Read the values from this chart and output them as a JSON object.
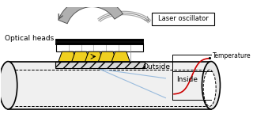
{
  "bg_color": "#ffffff",
  "pipe_edge_color": "#000000",
  "pipe_face_color": "#f0f0f0",
  "pipe_inner_color": "#ffffff",
  "head_box_color": "#ffffff",
  "head_box_edge": "#000000",
  "cone_fill": "#f0d020",
  "cone_edge": "#000000",
  "hatch_fill": "#d8d8d8",
  "temp_curve_color": "#cc0000",
  "blue_line_color": "#99bbdd",
  "arrow_fill": "#b0b0b0",
  "arrow_edge": "#555555",
  "laser_box_color": "#ffffff",
  "laser_box_edge": "#000000",
  "labels": {
    "optical_heads": "Optical heads",
    "laser_oscillator": "Laser oscillator",
    "outside": "Outside",
    "inside": "Inside",
    "temperature": "Temperature"
  },
  "figsize": [
    3.2,
    1.49
  ],
  "dpi": 100
}
